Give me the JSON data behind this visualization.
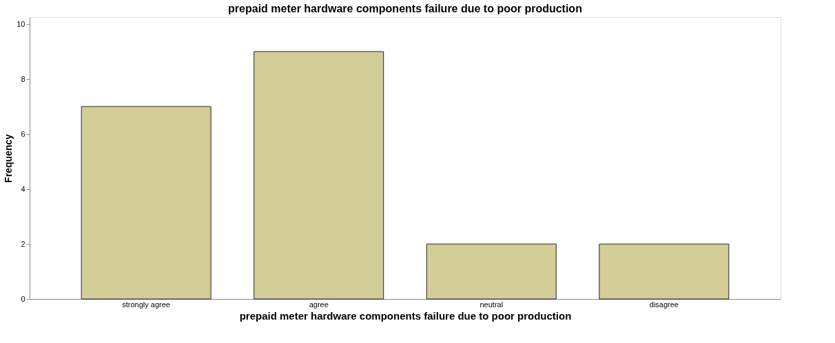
{
  "chart_data": {
    "type": "bar",
    "title": "prepaid meter hardware components failure due to poor production",
    "xlabel": "prepaid meter hardware components failure due to poor production",
    "ylabel": "Frequency",
    "categories": [
      "strongly agree",
      "agree",
      "neutral",
      "disagree"
    ],
    "values": [
      7,
      9,
      2,
      2
    ],
    "color": "#d3ce97",
    "ylim": [
      0,
      10.25
    ],
    "yticks": [
      0,
      2,
      4,
      6,
      8,
      10
    ],
    "grid": false
  }
}
